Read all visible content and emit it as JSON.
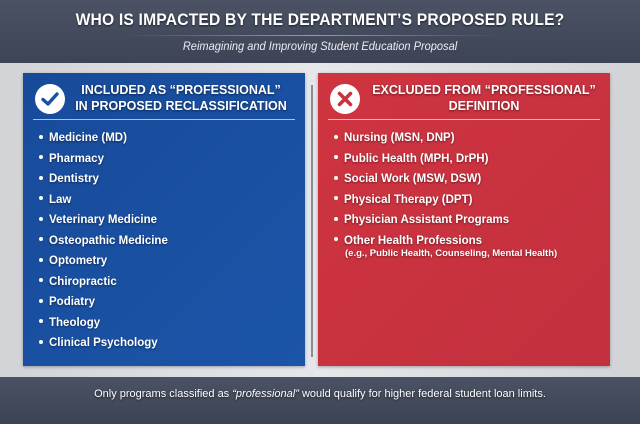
{
  "header": {
    "title": "WHO IS IMPACTED BY THE DEPARTMENT’S PROPOSED RULE?",
    "subtitle": "Reimagining and Improving Student Education Proposal"
  },
  "included": {
    "icon": "check-circle-icon",
    "color": "#1b51a3",
    "heading_line1": "INCLUDED AS “PROFESSIONAL”",
    "heading_line2": "IN PROPOSED RECLASSIFICATION",
    "items": [
      "Medicine (MD)",
      "Pharmacy",
      "Dentistry",
      "Law",
      "Veterinary Medicine",
      "Osteopathic Medicine",
      "Optometry",
      "Chiropractic",
      "Podiatry",
      "Theology",
      "Clinical Psychology"
    ]
  },
  "excluded": {
    "icon": "x-circle-icon",
    "color": "#c9323f",
    "heading_line1": "EXCLUDED FROM “PROFESSIONAL”",
    "heading_line2": "DEFINITION",
    "items": [
      "Nursing (MSN, DNP)",
      "Public Health (MPH, DrPH)",
      "Social Work (MSW, DSW)",
      "Physical Therapy (DPT)",
      "Physician Assistant Programs",
      "Other Health Professions"
    ],
    "note": "(e.g., Public Health, Counseling, Mental Health)"
  },
  "footer": {
    "before": "Only programs classified as ",
    "emphasis": "“professional”",
    "after": " would qualify for higher federal student loan limits."
  }
}
